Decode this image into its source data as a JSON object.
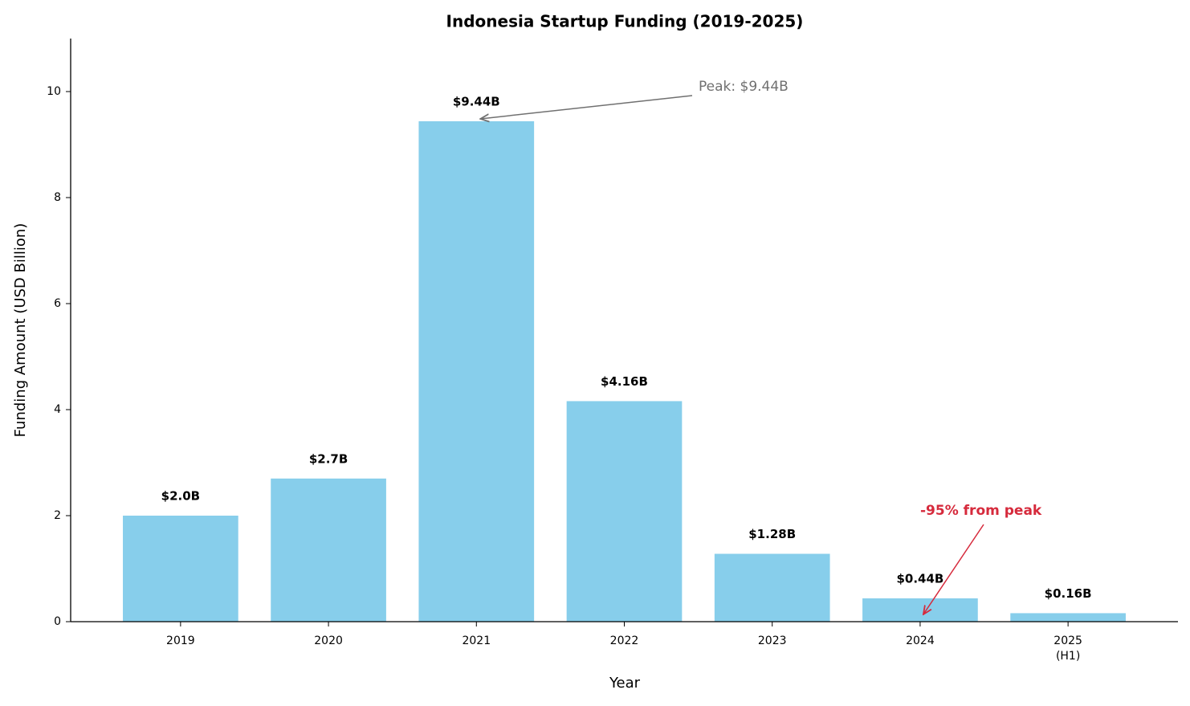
{
  "chart_data": {
    "type": "bar",
    "title": "Indonesia Startup Funding (2019-2025)",
    "x_label": "Year",
    "y_label": "Funding Amount (USD Billion)",
    "categories": [
      "2019",
      "2020",
      "2021",
      "2022",
      "2023",
      "2024",
      "2025\n(H1)"
    ],
    "values": [
      2.0,
      2.7,
      9.44,
      4.16,
      1.28,
      0.44,
      0.16
    ],
    "value_labels": [
      "$2.0B",
      "$2.7B",
      "$9.44B",
      "$4.16B",
      "$1.28B",
      "$0.44B",
      "$0.16B"
    ],
    "color": "#87ceeb",
    "ylim": [
      0,
      11
    ],
    "yticks": [
      0,
      2,
      4,
      6,
      8,
      10
    ],
    "grid": false,
    "annotations": [
      {
        "text": "Peak: $9.44B",
        "color": "#707070",
        "target": 2
      },
      {
        "text": "-95% from peak",
        "color": "#d62a3c",
        "target": 5
      }
    ]
  }
}
